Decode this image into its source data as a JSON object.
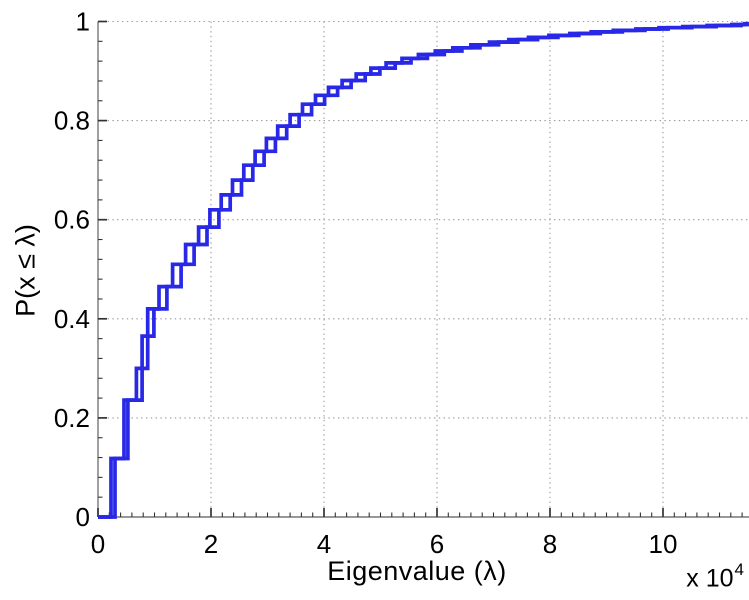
{
  "chart_data": {
    "type": "line",
    "subtype": "empirical-cdf-steps",
    "title": "",
    "xlabel": "Eigenvalue (λ)",
    "ylabel": "P(x ≤ λ)",
    "x_axis_multiplier": {
      "prefix": "x 10",
      "exponent": "4"
    },
    "xlim": [
      0,
      11.52
    ],
    "ylim": [
      0,
      1
    ],
    "xticks": [
      0,
      2,
      4,
      6,
      8,
      10
    ],
    "xtick_labels": [
      "0",
      "2",
      "4",
      "6",
      "8",
      "10"
    ],
    "yticks": [
      0,
      0.2,
      0.4,
      0.6,
      0.8,
      1
    ],
    "ytick_labels": [
      "0",
      "0.2",
      "0.4",
      "0.6",
      "0.8",
      "1"
    ],
    "x_minor_step": 0.2,
    "y_minor_step": 0.04,
    "grid": true,
    "grid_style": "dotted",
    "grid_color": "#9a9a9a",
    "axis_color": "#777777",
    "tick_color": "#333333",
    "line_color": "#2828E6",
    "legend": null,
    "series": [
      {
        "name": "ecdf-curve-1",
        "color": "#2828E6",
        "jumps": [
          [
            0.23,
            0.118
          ],
          [
            0.46,
            0.236
          ],
          [
            0.68,
            0.3
          ],
          [
            0.78,
            0.365
          ],
          [
            0.88,
            0.42
          ],
          [
            1.08,
            0.465
          ],
          [
            1.32,
            0.51
          ],
          [
            1.55,
            0.55
          ],
          [
            1.78,
            0.585
          ],
          [
            1.98,
            0.62
          ],
          [
            2.18,
            0.65
          ],
          [
            2.38,
            0.68
          ],
          [
            2.58,
            0.71
          ],
          [
            2.78,
            0.738
          ],
          [
            2.98,
            0.764
          ],
          [
            3.18,
            0.789
          ],
          [
            3.4,
            0.812
          ],
          [
            3.62,
            0.833
          ],
          [
            3.85,
            0.851
          ],
          [
            4.08,
            0.867
          ],
          [
            4.32,
            0.881
          ],
          [
            4.57,
            0.894
          ],
          [
            4.83,
            0.906
          ],
          [
            5.1,
            0.9165
          ],
          [
            5.38,
            0.9255
          ],
          [
            5.67,
            0.9335
          ],
          [
            5.97,
            0.9405
          ],
          [
            6.28,
            0.947
          ],
          [
            6.6,
            0.953
          ],
          [
            6.93,
            0.9585
          ],
          [
            7.27,
            0.9635
          ],
          [
            7.62,
            0.968
          ],
          [
            7.98,
            0.972
          ],
          [
            8.35,
            0.9757
          ],
          [
            8.73,
            0.979
          ],
          [
            9.12,
            0.982
          ],
          [
            9.52,
            0.9848
          ],
          [
            9.93,
            0.9874
          ],
          [
            10.35,
            0.9898
          ],
          [
            10.78,
            0.992
          ],
          [
            11.22,
            0.994
          ],
          [
            11.45,
            0.9955
          ]
        ]
      },
      {
        "name": "ecdf-curve-2",
        "color": "#2828E6",
        "jumps": [
          [
            0.3,
            0.118
          ],
          [
            0.53,
            0.236
          ],
          [
            0.78,
            0.3
          ],
          [
            0.88,
            0.365
          ],
          [
            0.99,
            0.42
          ],
          [
            1.22,
            0.465
          ],
          [
            1.47,
            0.51
          ],
          [
            1.7,
            0.55
          ],
          [
            1.93,
            0.585
          ],
          [
            2.14,
            0.62
          ],
          [
            2.34,
            0.65
          ],
          [
            2.54,
            0.68
          ],
          [
            2.74,
            0.71
          ],
          [
            2.94,
            0.738
          ],
          [
            3.14,
            0.764
          ],
          [
            3.34,
            0.789
          ],
          [
            3.56,
            0.812
          ],
          [
            3.78,
            0.833
          ],
          [
            4.01,
            0.851
          ],
          [
            4.24,
            0.867
          ],
          [
            4.48,
            0.881
          ],
          [
            4.73,
            0.894
          ],
          [
            4.99,
            0.906
          ],
          [
            5.26,
            0.9165
          ],
          [
            5.54,
            0.9255
          ],
          [
            5.83,
            0.9335
          ],
          [
            6.13,
            0.9405
          ],
          [
            6.44,
            0.947
          ],
          [
            6.76,
            0.953
          ],
          [
            7.09,
            0.9585
          ],
          [
            7.43,
            0.9635
          ],
          [
            7.78,
            0.968
          ],
          [
            8.14,
            0.972
          ],
          [
            8.51,
            0.9757
          ],
          [
            8.89,
            0.979
          ],
          [
            9.28,
            0.982
          ],
          [
            9.68,
            0.9848
          ],
          [
            10.09,
            0.9874
          ],
          [
            10.51,
            0.9898
          ],
          [
            10.94,
            0.992
          ],
          [
            11.38,
            0.994
          ],
          [
            11.6,
            0.9955
          ]
        ]
      }
    ]
  }
}
